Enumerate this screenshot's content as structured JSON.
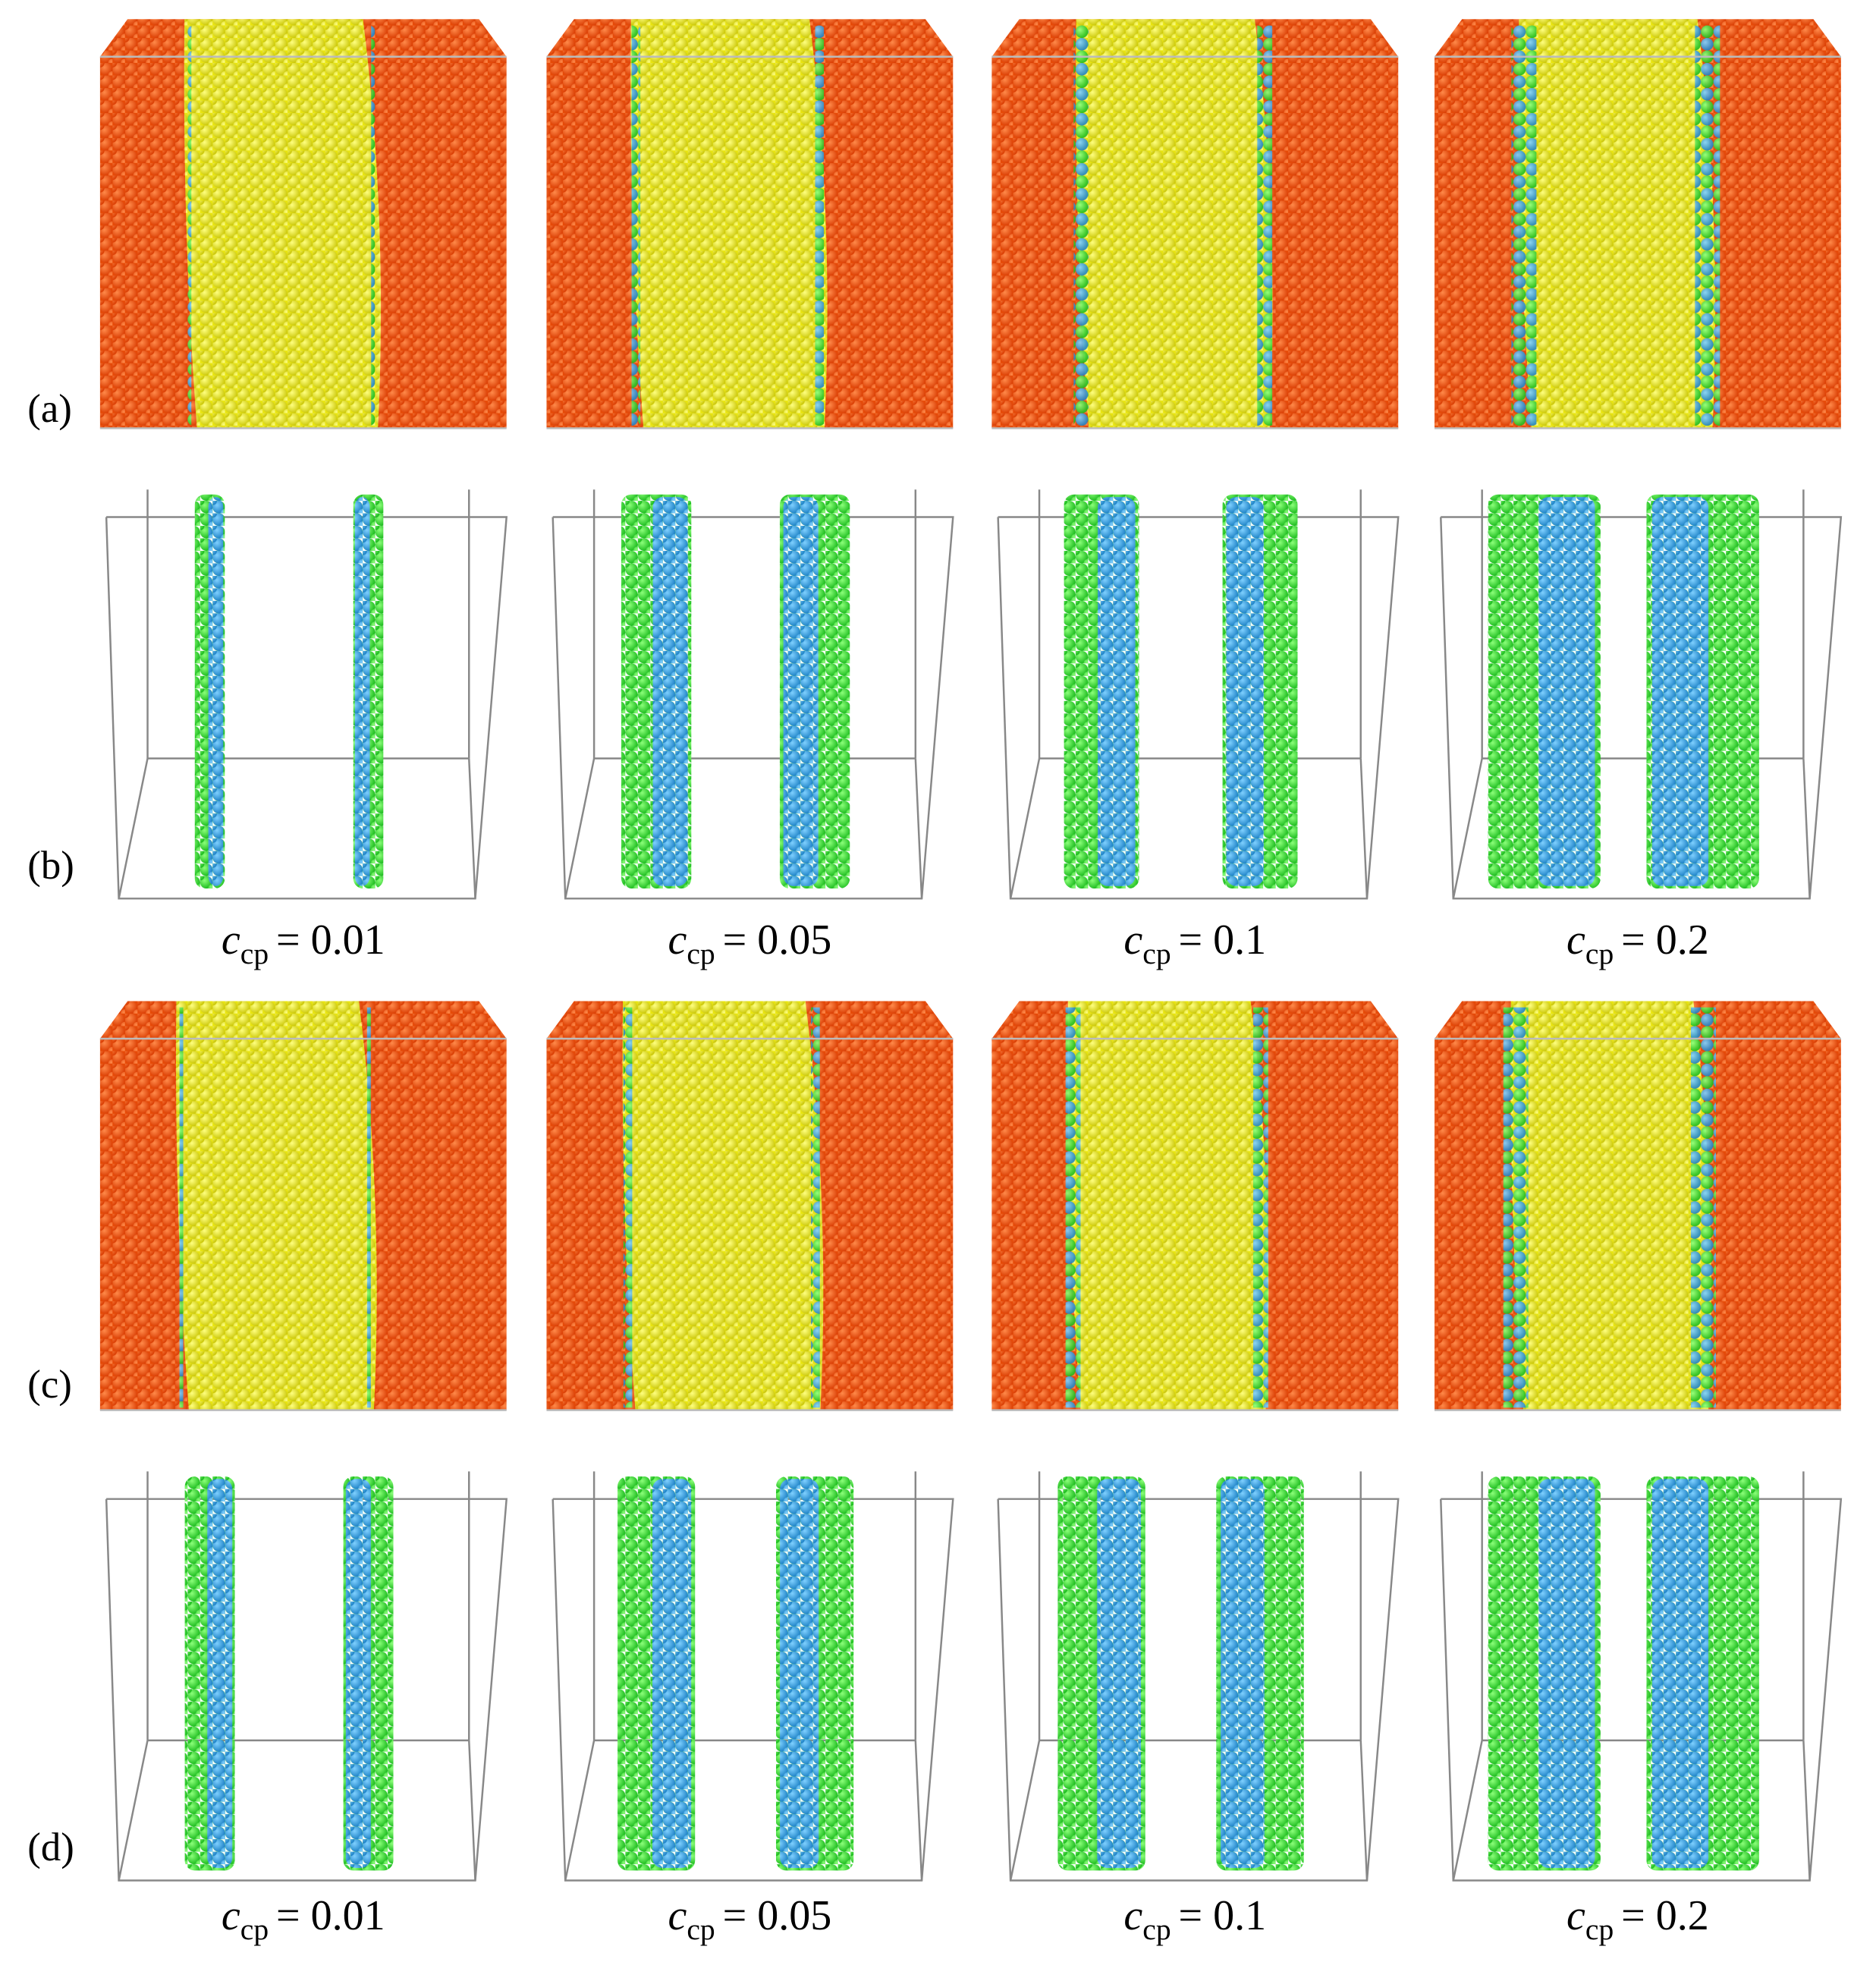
{
  "figure": {
    "row_labels": [
      "(a)",
      "(b)",
      "(c)",
      "(d)"
    ],
    "captions_top": [
      {
        "symbol": "c",
        "subscript": "cp",
        "value": "= 0.01"
      },
      {
        "symbol": "c",
        "subscript": "cp",
        "value": "= 0.05"
      },
      {
        "symbol": "c",
        "subscript": "cp",
        "value": "= 0.1"
      },
      {
        "symbol": "c",
        "subscript": "cp",
        "value": "= 0.2"
      }
    ],
    "captions_bottom": [
      {
        "symbol": "c",
        "subscript": "cp",
        "value": "= 0.01"
      },
      {
        "symbol": "c",
        "subscript": "cp",
        "value": "= 0.05"
      },
      {
        "symbol": "c",
        "subscript": "cp",
        "value": "= 0.1"
      },
      {
        "symbol": "c",
        "subscript": "cp",
        "value": "= 0.2"
      }
    ]
  }
}
